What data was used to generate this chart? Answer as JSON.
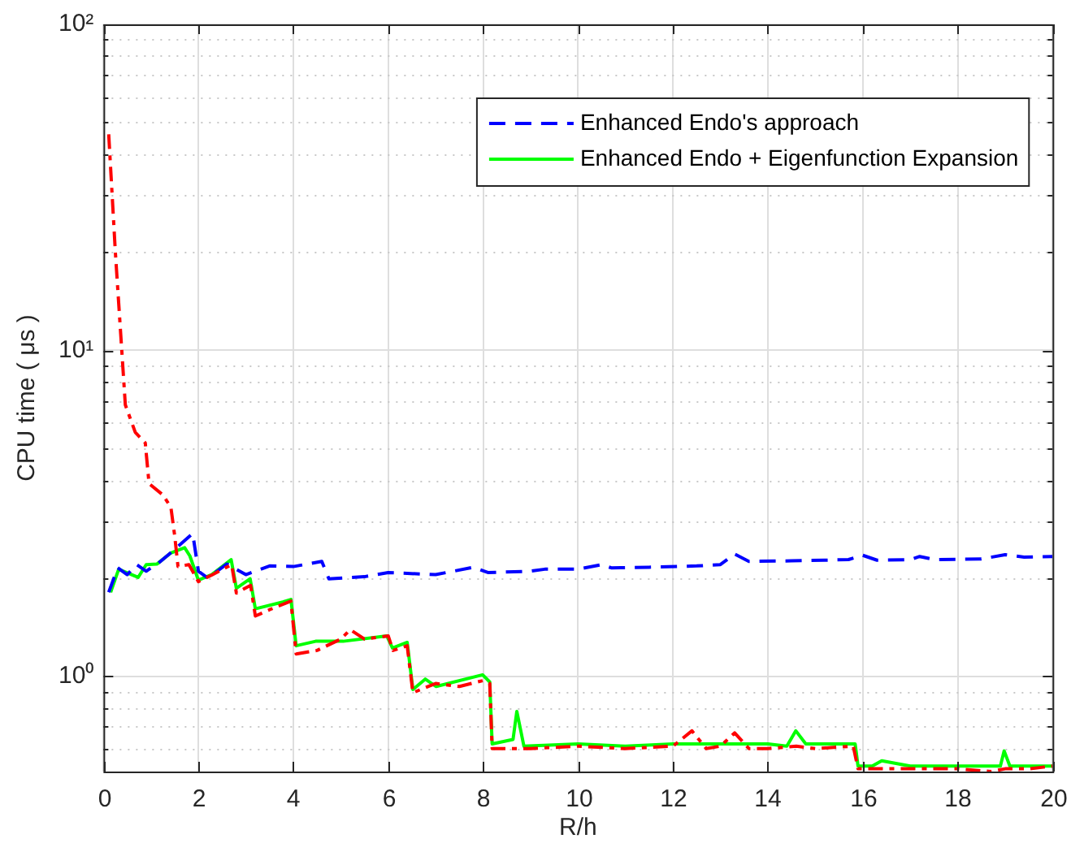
{
  "chart_data": {
    "type": "line",
    "xlabel": "R/h",
    "ylabel": "CPU time ( μs )",
    "xlim": [
      0,
      20
    ],
    "xticks": [
      0,
      2,
      4,
      6,
      8,
      10,
      12,
      14,
      16,
      18,
      20
    ],
    "ylim": [
      0.51,
      100
    ],
    "log": "y",
    "yticks": [
      {
        "value": 0.6,
        "label": null
      },
      {
        "value": 0.7,
        "label": null
      },
      {
        "value": 0.8,
        "label": null
      },
      {
        "value": 0.9,
        "label": null
      },
      {
        "value": 1,
        "label": "10⁰"
      },
      {
        "value": 2,
        "label": null
      },
      {
        "value": 3,
        "label": null
      },
      {
        "value": 4,
        "label": null
      },
      {
        "value": 5,
        "label": null
      },
      {
        "value": 6,
        "label": null
      },
      {
        "value": 7,
        "label": null
      },
      {
        "value": 8,
        "label": null
      },
      {
        "value": 9,
        "label": null
      },
      {
        "value": 10,
        "label": "10¹"
      },
      {
        "value": 20,
        "label": null
      },
      {
        "value": 30,
        "label": null
      },
      {
        "value": 40,
        "label": null
      },
      {
        "value": 50,
        "label": null
      },
      {
        "value": 60,
        "label": null
      },
      {
        "value": 70,
        "label": null
      },
      {
        "value": 80,
        "label": null
      },
      {
        "value": 90,
        "label": null
      },
      {
        "value": 100,
        "label": "10²"
      }
    ],
    "grid": true,
    "legend": "top right",
    "series": [
      {
        "color": "#ff0000",
        "line_style": "dashdot",
        "x": [
          0.11,
          0.25,
          0.46,
          0.67,
          0.88,
          0.96,
          1.25,
          1.42,
          1.5,
          1.57,
          1.8,
          2.0,
          2.3,
          2.7,
          2.8,
          3.1,
          3.2,
          3.5,
          3.95,
          4.06,
          4.5,
          5.0,
          5.2,
          5.5,
          6.0,
          6.1,
          6.4,
          6.52,
          7.0,
          7.5,
          8.0,
          8.14,
          8.19,
          8.6,
          9.0,
          10,
          11,
          12,
          12.4,
          12.7,
          13.0,
          13.3,
          13.6,
          14,
          14.6,
          15.0,
          15.8,
          15.9,
          16.3,
          17,
          18,
          18.7,
          19,
          19.5,
          20
        ],
        "values": [
          46,
          20,
          6.8,
          5.6,
          5.2,
          3.9,
          3.6,
          3.3,
          2.7,
          2.17,
          2.2,
          1.95,
          2.05,
          2.2,
          1.8,
          1.9,
          1.53,
          1.6,
          1.7,
          1.17,
          1.2,
          1.3,
          1.39,
          1.3,
          1.33,
          1.2,
          1.24,
          0.89,
          0.95,
          0.93,
          0.97,
          0.95,
          0.6,
          0.6,
          0.6,
          0.61,
          0.6,
          0.61,
          0.68,
          0.6,
          0.61,
          0.67,
          0.6,
          0.6,
          0.61,
          0.6,
          0.61,
          0.52,
          0.52,
          0.52,
          0.52,
          0.51,
          0.52,
          0.52,
          0.53
        ]
      },
      {
        "name": "Enhanced Endo's approach",
        "color": "#0000ff",
        "line_style": "dashed",
        "x": [
          0.11,
          0.3,
          0.5,
          0.7,
          0.9,
          1.2,
          1.5,
          1.88,
          2.0,
          2.2,
          2.6,
          3.0,
          3.5,
          4.0,
          4.6,
          4.75,
          5.5,
          6.0,
          7.0,
          7.8,
          8.1,
          9.0,
          9.3,
          10,
          10.5,
          10.7,
          11.5,
          12.5,
          13.0,
          13.3,
          13.6,
          14.5,
          15.2,
          15.7,
          16.0,
          16.3,
          17.0,
          17.2,
          17.5,
          18.5,
          19.0,
          19.4,
          20
        ],
        "values": [
          1.81,
          2.15,
          2.05,
          2.2,
          2.1,
          2.25,
          2.45,
          2.74,
          2.1,
          2.0,
          2.21,
          2.05,
          2.18,
          2.17,
          2.25,
          1.99,
          2.02,
          2.08,
          2.05,
          2.16,
          2.08,
          2.1,
          2.13,
          2.13,
          2.2,
          2.15,
          2.16,
          2.18,
          2.2,
          2.37,
          2.25,
          2.26,
          2.27,
          2.28,
          2.35,
          2.27,
          2.28,
          2.33,
          2.28,
          2.29,
          2.36,
          2.32,
          2.33
        ]
      },
      {
        "name": "Enhanced Endo + Eigenfunction Expansion",
        "color": "#00ff00",
        "line_style": "solid",
        "x": [
          0.15,
          0.32,
          0.45,
          0.73,
          0.9,
          1.13,
          1.42,
          1.71,
          1.82,
          2.0,
          2.28,
          2.69,
          2.8,
          3.09,
          3.2,
          3.78,
          3.95,
          4.06,
          4.47,
          5.05,
          5.97,
          6.09,
          6.4,
          6.52,
          6.78,
          7.01,
          7.99,
          8.14,
          8.19,
          8.63,
          8.71,
          8.86,
          10,
          11,
          12,
          13,
          14,
          14.4,
          14.59,
          14.8,
          15.84,
          15.9,
          16.2,
          16.4,
          17,
          18,
          18.9,
          18.98,
          19.1,
          20
        ],
        "values": [
          1.81,
          2.13,
          2.09,
          2.01,
          2.2,
          2.21,
          2.39,
          2.48,
          2.34,
          1.97,
          2.05,
          2.28,
          1.86,
          1.99,
          1.61,
          1.69,
          1.72,
          1.24,
          1.28,
          1.28,
          1.33,
          1.22,
          1.27,
          0.91,
          0.98,
          0.93,
          1.01,
          0.96,
          0.62,
          0.64,
          0.78,
          0.61,
          0.62,
          0.61,
          0.62,
          0.62,
          0.62,
          0.61,
          0.68,
          0.62,
          0.62,
          0.53,
          0.53,
          0.55,
          0.53,
          0.53,
          0.53,
          0.59,
          0.53,
          0.53
        ]
      }
    ]
  }
}
